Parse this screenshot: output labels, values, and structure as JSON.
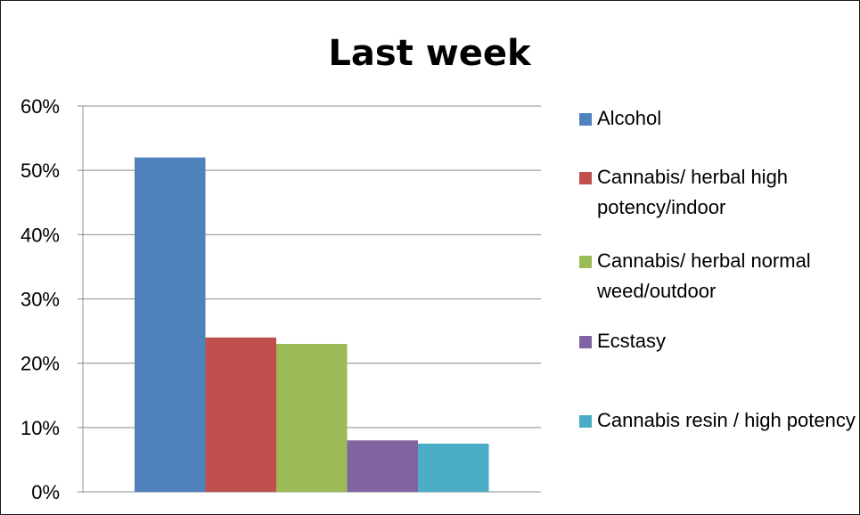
{
  "chart_data": {
    "type": "bar",
    "title": "Last week",
    "xlabel": "",
    "ylabel": "",
    "ylim": [
      0,
      60
    ],
    "yticks": [
      "0%",
      "10%",
      "20%",
      "30%",
      "40%",
      "50%",
      "60%"
    ],
    "grid": true,
    "legend_position": "right",
    "series": [
      {
        "name": "Alcohol",
        "values": [
          52
        ],
        "color": "#4f81bd"
      },
      {
        "name": "Cannabis/ herbal high potency/indoor",
        "values": [
          24
        ],
        "color": "#c0504d"
      },
      {
        "name": "Cannabis/ herbal normal weed/outdoor",
        "values": [
          23
        ],
        "color": "#9bbb59"
      },
      {
        "name": "Ecstasy",
        "values": [
          8
        ],
        "color": "#8064a2"
      },
      {
        "name": "Cannabis resin / high potency",
        "values": [
          7.5
        ],
        "color": "#4bacc6"
      }
    ]
  }
}
